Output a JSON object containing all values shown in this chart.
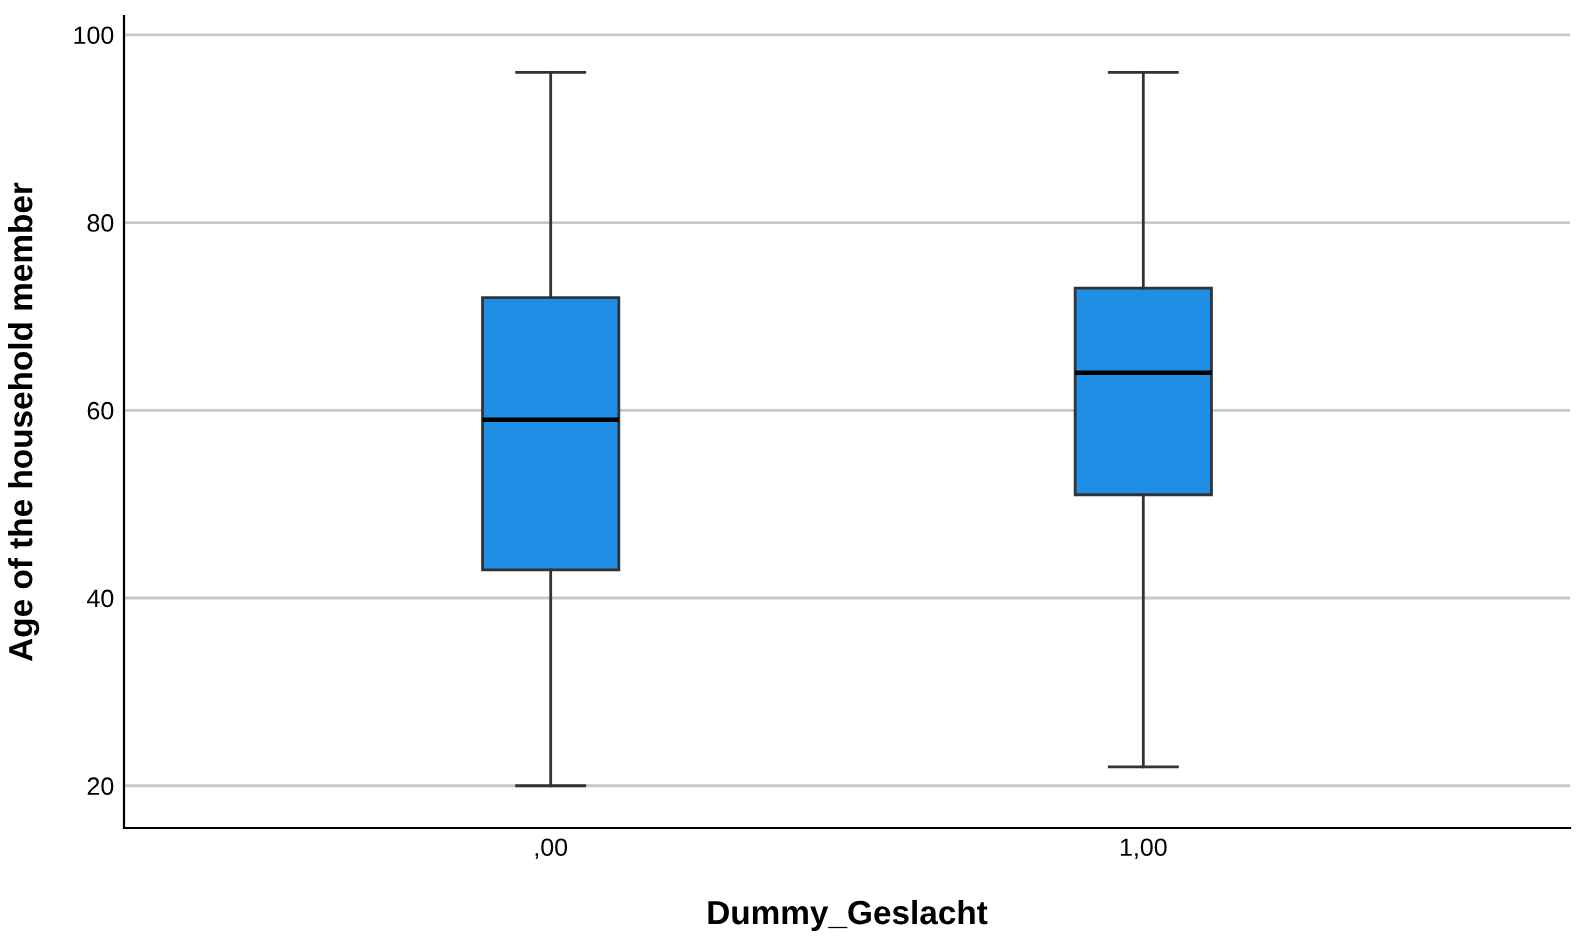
{
  "chart_data": {
    "type": "box",
    "xlabel": "Dummy_Geslacht",
    "ylabel": "Age of the household member",
    "categories": [
      ",00",
      "1,00"
    ],
    "boxes": [
      {
        "low": 20,
        "q1": 43,
        "median": 59,
        "q3": 72,
        "high": 96
      },
      {
        "low": 22,
        "q1": 51,
        "median": 64,
        "q3": 73,
        "high": 96
      }
    ],
    "color": "#1f8fe6",
    "ylim": [
      15.5,
      102
    ],
    "yticks": [
      20,
      40,
      60,
      80,
      100
    ],
    "grid": "y"
  }
}
